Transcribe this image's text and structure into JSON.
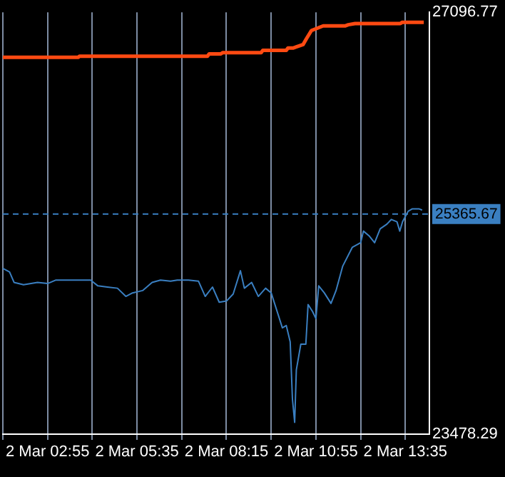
{
  "chart_data": {
    "type": "line",
    "series": [
      {
        "color": "#ff4a12",
        "x": [
          "--03-02T01:35",
          "--03-02T03:50",
          "--03-02T03:52",
          "--03-02T07:41",
          "--03-02T07:44",
          "--03-02T08:05",
          "--03-02T08:08",
          "--03-02T09:17",
          "--03-02T09:20",
          "--03-02T10:02",
          "--03-02T10:05",
          "--03-02T10:14",
          "--03-02T10:20",
          "--03-02T10:32",
          "--03-02T10:38",
          "--03-02T10:47",
          "--03-02T11:08",
          "--03-02T11:47",
          "--03-02T11:53",
          "--03-02T12:05",
          "--03-02T13:26",
          "--03-02T13:29",
          "--03-02T14:08"
        ],
        "values": [
          26710,
          26710,
          26720,
          26720,
          26740,
          26740,
          26750,
          26750,
          26770,
          26770,
          26790,
          26790,
          26800,
          26820,
          26870,
          26940,
          26980,
          26980,
          26990,
          27000,
          27000,
          27010,
          27010
        ]
      },
      {
        "color": "#3a7fc1",
        "x": [
          "--03-02T01:35",
          "--03-02T01:47",
          "--03-02T01:55",
          "--03-02T02:12",
          "--03-02T02:37",
          "--03-02T02:55",
          "--03-02T03:10",
          "--03-02T04:12",
          "--03-02T04:25",
          "--03-02T04:42",
          "--03-02T05:00",
          "--03-02T05:15",
          "--03-02T05:27",
          "--03-02T05:45",
          "--03-02T06:02",
          "--03-02T06:17",
          "--03-02T06:35",
          "--03-02T06:47",
          "--03-02T07:07",
          "--03-02T07:25",
          "--03-02T07:37",
          "--03-02T07:50",
          "--03-02T08:02",
          "--03-02T08:15",
          "--03-02T08:27",
          "--03-02T08:40",
          "--03-02T08:47",
          "--03-02T09:00",
          "--03-02T09:12",
          "--03-02T09:25",
          "--03-02T09:35",
          "--03-02T09:47",
          "--03-02T09:55",
          "--03-02T10:02",
          "--03-02T10:09",
          "--03-02T10:13",
          "--03-02T10:17",
          "--03-02T10:20",
          "--03-02T10:28",
          "--03-02T10:37",
          "--03-02T10:41",
          "--03-02T10:49",
          "--03-02T10:55",
          "--03-02T11:00",
          "--03-02T11:10",
          "--03-02T11:22",
          "--03-02T11:31",
          "--03-02T11:43",
          "--03-02T12:00",
          "--03-02T12:15",
          "--03-02T12:20",
          "--03-02T12:30",
          "--03-02T12:40",
          "--03-02T12:50",
          "--03-02T13:02",
          "--03-02T13:10",
          "--03-02T13:20",
          "--03-02T13:25",
          "--03-02T13:30",
          "--03-02T13:40",
          "--03-02T13:47",
          "--03-02T14:00",
          "--03-02T14:05"
        ],
        "values": [
          24900,
          24870,
          24780,
          24760,
          24780,
          24770,
          24800,
          24800,
          24750,
          24740,
          24730,
          24660,
          24690,
          24710,
          24780,
          24800,
          24790,
          24800,
          24800,
          24790,
          24660,
          24740,
          24610,
          24620,
          24680,
          24880,
          24730,
          24780,
          24660,
          24730,
          24690,
          24510,
          24390,
          24410,
          24270,
          23780,
          23580,
          24030,
          24250,
          24250,
          24590,
          24530,
          24470,
          24750,
          24690,
          24600,
          24710,
          24920,
          25080,
          25120,
          25220,
          25180,
          25120,
          25240,
          25280,
          25320,
          25300,
          25220,
          25300,
          25390,
          25410,
          25410,
          25400
        ]
      }
    ],
    "xlim": [
      "--03-02T01:35",
      "--03-02T14:18"
    ],
    "xticks": [
      {
        "value": "--03-02T01:35",
        "label": null
      },
      {
        "value": "--03-02T02:55",
        "label": "2 Mar 02:55"
      },
      {
        "value": "--03-02T04:15",
        "label": null
      },
      {
        "value": "--03-02T05:35",
        "label": "2 Mar 05:35"
      },
      {
        "value": "--03-02T06:55",
        "label": null
      },
      {
        "value": "--03-02T08:15",
        "label": "2 Mar 08:15"
      },
      {
        "value": "--03-02T09:35",
        "label": null
      },
      {
        "value": "--03-02T10:55",
        "label": "2 Mar 10:55"
      },
      {
        "value": "--03-02T12:15",
        "label": null
      },
      {
        "value": "--03-02T13:35",
        "label": "2 Mar 13:35"
      }
    ],
    "ylim": [
      23478.29,
      27096.77
    ],
    "yticks": [
      23478.29,
      27096.77
    ],
    "ref_lines": [
      {
        "axis": "y",
        "value": 25365.67,
        "label": "25365.67",
        "color": "#3a7fc1",
        "line_style": "dashed"
      }
    ],
    "grid": "x",
    "legend": false,
    "marker": "none",
    "line_style": "solid"
  }
}
